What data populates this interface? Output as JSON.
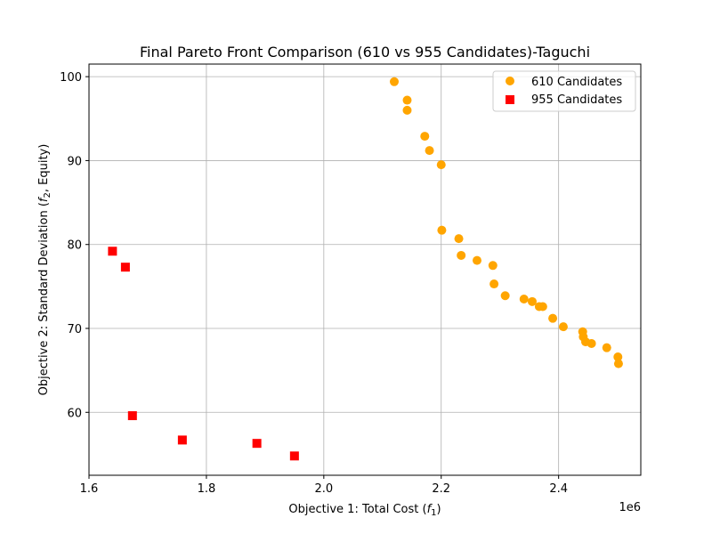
{
  "chart_data": {
    "type": "scatter",
    "title": "Final Pareto Front Comparison (610 vs 955 Candidates)-Taguchi",
    "xlabel": "Objective 1: Total Cost (",
    "xlabel_var": "f",
    "xlabel_sub": "1",
    "xlabel_end": ")",
    "ylabel": "Objective 2: Standard Deviation (",
    "ylabel_var": "f",
    "ylabel_sub": "2",
    "ylabel_end": ", Equity)",
    "x_offset_label": "1e6",
    "x_scale": 1000000,
    "xlim": [
      1.6,
      2.54
    ],
    "ylim": [
      52.5,
      101.5
    ],
    "x_ticks": [
      1.6,
      1.8,
      2.0,
      2.2,
      2.4
    ],
    "x_tick_labels": [
      "1.6",
      "1.8",
      "2.0",
      "2.2",
      "2.4"
    ],
    "y_ticks": [
      60,
      70,
      80,
      90,
      100
    ],
    "y_tick_labels": [
      "60",
      "70",
      "80",
      "90",
      "100"
    ],
    "grid": true,
    "legend_position": "top-right",
    "series": [
      {
        "name": "610 Candidates",
        "marker": "circle",
        "color": "#FFA500",
        "points": [
          [
            2.12,
            99.4
          ],
          [
            2.142,
            97.2
          ],
          [
            2.142,
            96.0
          ],
          [
            2.172,
            92.9
          ],
          [
            2.18,
            91.2
          ],
          [
            2.2,
            89.5
          ],
          [
            2.201,
            81.7
          ],
          [
            2.23,
            80.7
          ],
          [
            2.234,
            78.7
          ],
          [
            2.261,
            78.1
          ],
          [
            2.288,
            77.5
          ],
          [
            2.29,
            75.3
          ],
          [
            2.309,
            73.9
          ],
          [
            2.341,
            73.5
          ],
          [
            2.355,
            73.2
          ],
          [
            2.367,
            72.6
          ],
          [
            2.373,
            72.6
          ],
          [
            2.39,
            71.2
          ],
          [
            2.408,
            70.2
          ],
          [
            2.441,
            69.6
          ],
          [
            2.442,
            69.0
          ],
          [
            2.446,
            68.4
          ],
          [
            2.456,
            68.2
          ],
          [
            2.482,
            67.7
          ],
          [
            2.501,
            66.6
          ],
          [
            2.502,
            65.8
          ]
        ]
      },
      {
        "name": "955 Candidates",
        "marker": "square",
        "color": "#FF0000",
        "points": [
          [
            1.64,
            79.2
          ],
          [
            1.662,
            77.3
          ],
          [
            1.674,
            59.6
          ],
          [
            1.759,
            56.7
          ],
          [
            1.886,
            56.3
          ],
          [
            1.95,
            54.8
          ]
        ]
      }
    ]
  }
}
